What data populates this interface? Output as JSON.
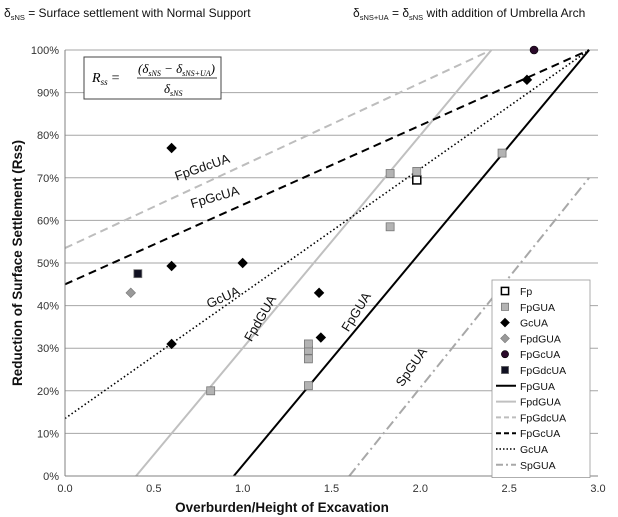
{
  "header_notes": {
    "left": {
      "symbol": "δ",
      "sub": "sNS",
      "text": " = Surface settlement with Normal Support"
    },
    "right": {
      "symbol1": "δ",
      "sub1": "sNS+UA",
      "mid": " = δ",
      "sub2": "sNS",
      "text": "  with addition of Umbrella Arch"
    }
  },
  "formula": {
    "lhs": "R",
    "lhs_sub": "ss",
    "equals": "=",
    "numerator": "(δ",
    "num_sub1": "sNS",
    "num_minus": " − δ",
    "num_sub2": "sNS+UA",
    "num_close": ")",
    "denominator": "δ",
    "den_sub": "sNS"
  },
  "chart_data": {
    "type": "scatter",
    "xlabel": "Overburden/Height of Excavation",
    "ylabel": "Reduction of Surface Settlement (Rss)",
    "xlim": [
      0,
      3.0
    ],
    "ylim": [
      0,
      100
    ],
    "x_ticks": [
      "0.0",
      "0.5",
      "1.0",
      "1.5",
      "2.0",
      "2.5",
      "3.0"
    ],
    "y_ticks": [
      "0%",
      "10%",
      "20%",
      "30%",
      "40%",
      "50%",
      "60%",
      "70%",
      "80%",
      "90%",
      "100%"
    ],
    "grid": "horizontal",
    "legend_position": "right",
    "scatter_series": [
      {
        "name": "Fp",
        "marker": "square-open",
        "color": "#000000",
        "points": [
          {
            "x": 1.98,
            "y": 69.5
          }
        ]
      },
      {
        "name": "FpGUA",
        "marker": "square",
        "color": "#b3b3b3",
        "points": [
          {
            "x": 0.82,
            "y": 20
          },
          {
            "x": 1.37,
            "y": 21.2
          },
          {
            "x": 1.37,
            "y": 27.5
          },
          {
            "x": 1.37,
            "y": 29.5
          },
          {
            "x": 1.37,
            "y": 31
          },
          {
            "x": 1.83,
            "y": 58.5
          },
          {
            "x": 1.83,
            "y": 71
          },
          {
            "x": 1.98,
            "y": 71.5
          },
          {
            "x": 2.46,
            "y": 75.8
          }
        ]
      },
      {
        "name": "GcUA",
        "marker": "diamond",
        "color": "#000000",
        "points": [
          {
            "x": 0.6,
            "y": 77
          },
          {
            "x": 0.6,
            "y": 49.3
          },
          {
            "x": 0.6,
            "y": 31
          },
          {
            "x": 1.0,
            "y": 50
          },
          {
            "x": 1.43,
            "y": 43
          },
          {
            "x": 1.44,
            "y": 32.5
          },
          {
            "x": 2.6,
            "y": 93
          }
        ]
      },
      {
        "name": "FpdGUA",
        "marker": "diamond",
        "color": "#999999",
        "points": [
          {
            "x": 0.37,
            "y": 43
          }
        ]
      },
      {
        "name": "FpGcUA",
        "marker": "circle",
        "color": "#2a0a2a",
        "points": [
          {
            "x": 2.64,
            "y": 100
          }
        ]
      },
      {
        "name": "FpGdcUA",
        "marker": "square",
        "color": "#111122",
        "points": [
          {
            "x": 0.41,
            "y": 47.5
          }
        ]
      }
    ],
    "fit_lines": [
      {
        "name": "FpGUA",
        "style": "solid",
        "color": "#000000",
        "from": [
          0.95,
          0
        ],
        "to": [
          2.95,
          100
        ]
      },
      {
        "name": "FpdGUA",
        "style": "solid",
        "color": "#c0c0c0",
        "from": [
          0.4,
          0
        ],
        "to": [
          2.4,
          100
        ]
      },
      {
        "name": "FpGdcUA",
        "style": "dashed",
        "color": "#bdbdbd",
        "from": [
          0,
          53.5
        ],
        "to": [
          2.4,
          100
        ]
      },
      {
        "name": "FpGcUA",
        "style": "dashed",
        "color": "#000000",
        "from": [
          0,
          45
        ],
        "to": [
          2.95,
          100
        ]
      },
      {
        "name": "GcUA",
        "style": "dotted",
        "color": "#000000",
        "from": [
          0,
          13.5
        ],
        "to": [
          2.95,
          100
        ]
      },
      {
        "name": "SpGUA",
        "style": "dashdot",
        "color": "#a8a8a8",
        "from": [
          1.6,
          0
        ],
        "to": [
          2.95,
          70
        ]
      }
    ],
    "line_labels": [
      {
        "text": "FpGdcUA",
        "x": 0.78,
        "y": 71.5,
        "angle": -19
      },
      {
        "text": "FpGcUA",
        "x": 0.85,
        "y": 64.5,
        "angle": -16
      },
      {
        "text": "GcUA",
        "x": 0.9,
        "y": 41,
        "angle": -24
      },
      {
        "text": "FpdGUA",
        "x": 1.12,
        "y": 36.5,
        "angle": -60
      },
      {
        "text": "FpGUA",
        "x": 1.66,
        "y": 38,
        "angle": -58
      },
      {
        "text": "SpGUA",
        "x": 1.97,
        "y": 25,
        "angle": -55
      }
    ]
  }
}
